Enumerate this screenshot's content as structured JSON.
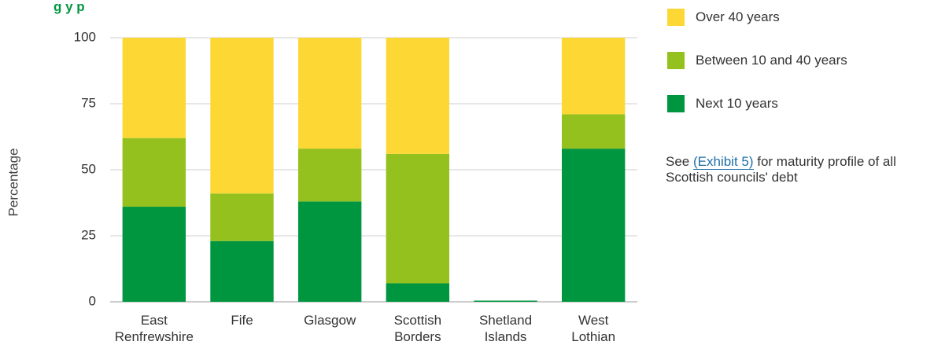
{
  "title_fragment": "g       y p",
  "chart_data": {
    "type": "bar",
    "stacked": true,
    "ylabel": "Percentage",
    "xlabel": "",
    "ylim": [
      0,
      100
    ],
    "yticks": [
      0,
      25,
      50,
      75,
      100
    ],
    "grid": true,
    "legend_position": "top-right",
    "categories": [
      [
        "East",
        "Renfrewshire"
      ],
      [
        "Fife"
      ],
      [
        "Glasgow"
      ],
      [
        "Scottish",
        "Borders"
      ],
      [
        "Shetland",
        "Islands"
      ],
      [
        "West",
        "Lothian"
      ]
    ],
    "series": [
      {
        "name": "Next 10 years",
        "color": "#009640",
        "values": [
          36,
          23,
          38,
          7,
          0,
          58
        ]
      },
      {
        "name": "Between 10 and 40 years",
        "color": "#95c11f",
        "values": [
          26,
          18,
          20,
          49,
          0,
          13
        ]
      },
      {
        "name": "Over 40 years",
        "color": "#fdd835",
        "values": [
          38,
          59,
          42,
          44,
          0,
          29
        ]
      }
    ]
  },
  "legend_items": [
    {
      "label": "Over 40 years",
      "color": "#fdd835"
    },
    {
      "label": "Between 10 and 40 years",
      "color": "#95c11f"
    },
    {
      "label": "Next 10 years",
      "color": "#009640"
    }
  ],
  "note": {
    "prefix": "See ",
    "link": "(Exhibit 5)",
    "suffix": " for maturity profile of all Scottish councils' debt"
  }
}
